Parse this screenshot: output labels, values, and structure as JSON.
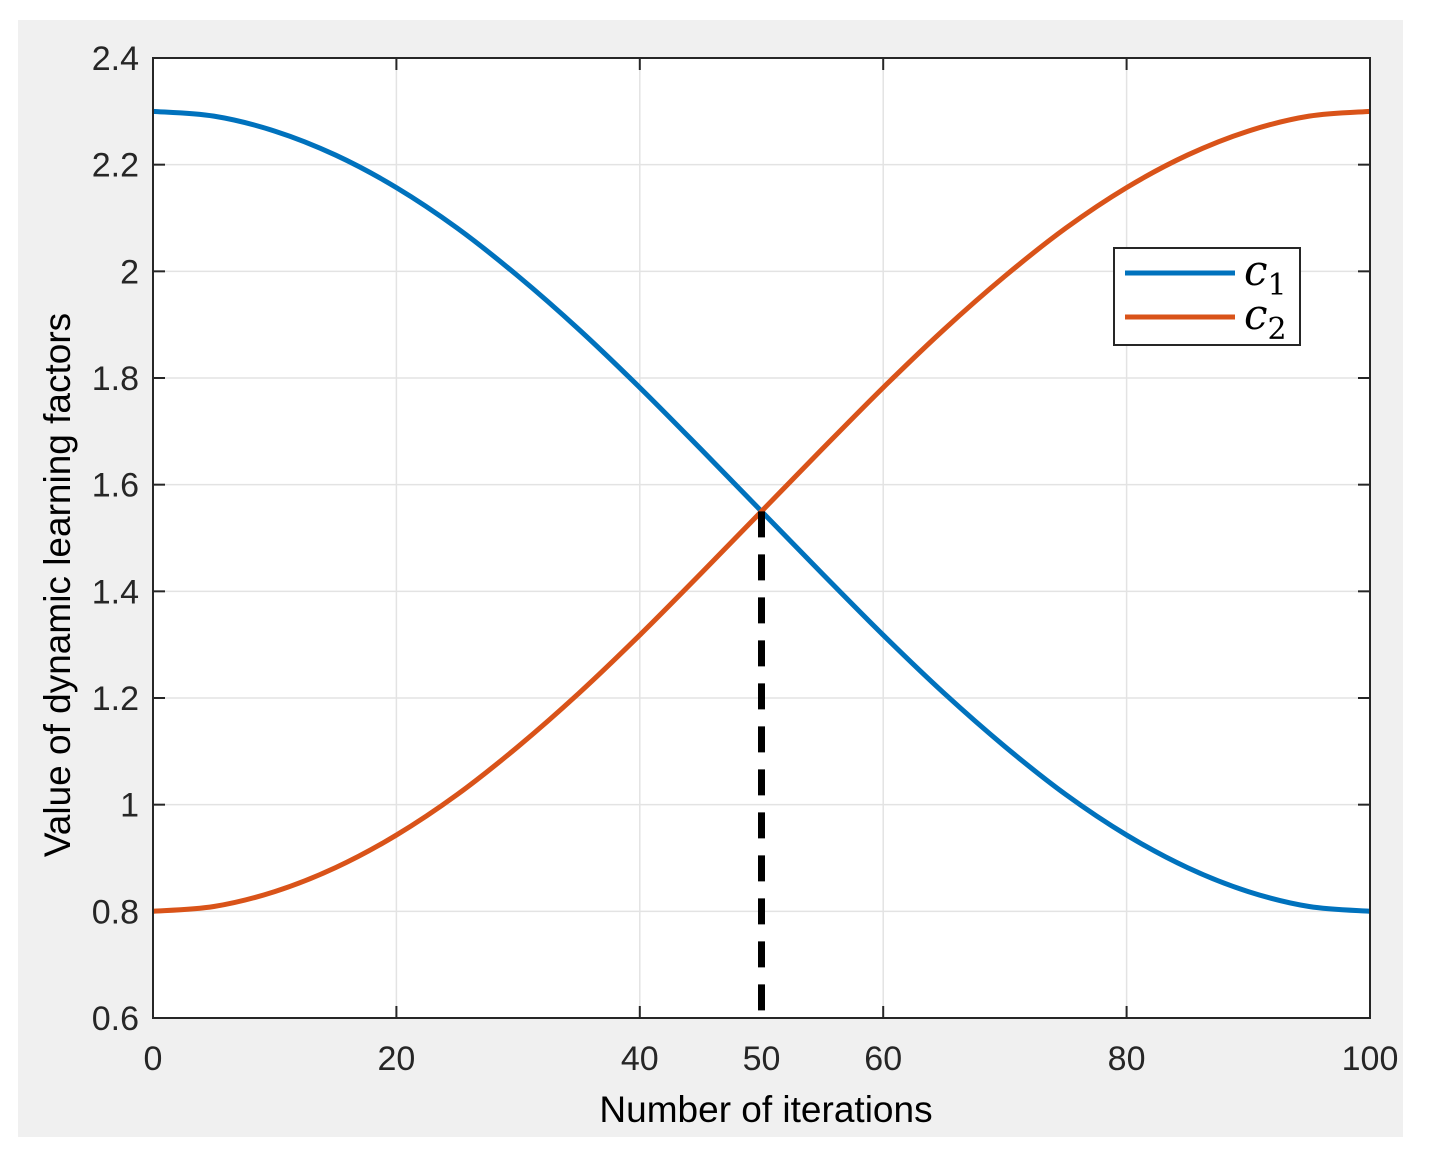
{
  "chart_data": {
    "type": "line",
    "title": "",
    "xlabel": "Number of iterations",
    "ylabel": "Value of dynamic learning factors",
    "xlim": [
      0,
      100
    ],
    "ylim": [
      0.6,
      2.4
    ],
    "xticks": [
      0,
      20,
      40,
      50,
      60,
      80,
      100
    ],
    "xtick_labels": [
      "0",
      "20",
      "40",
      "50",
      "60",
      "80",
      "100"
    ],
    "yticks": [
      0.6,
      0.8,
      1.0,
      1.2,
      1.4,
      1.6,
      1.8,
      2.0,
      2.2,
      2.4
    ],
    "ytick_labels": [
      "0.6",
      "0.8",
      "1",
      "1.2",
      "1.4",
      "1.6",
      "1.8",
      "2",
      "2.2",
      "2.4"
    ],
    "grid": true,
    "legend_position": "top-right",
    "x": [
      0,
      5,
      10,
      15,
      20,
      25,
      30,
      35,
      40,
      45,
      50,
      55,
      60,
      65,
      70,
      75,
      80,
      85,
      90,
      95,
      100
    ],
    "series": [
      {
        "name": "c",
        "subscript": "1",
        "color": "#0072bd",
        "values": [
          2.3,
          2.291,
          2.263,
          2.218,
          2.157,
          2.081,
          1.991,
          1.891,
          1.782,
          1.667,
          1.55,
          1.433,
          1.318,
          1.209,
          1.109,
          1.019,
          0.943,
          0.882,
          0.837,
          0.809,
          0.8
        ]
      },
      {
        "name": "c",
        "subscript": "2",
        "color": "#d95319",
        "values": [
          0.8,
          0.809,
          0.837,
          0.882,
          0.943,
          1.019,
          1.109,
          1.209,
          1.318,
          1.433,
          1.55,
          1.667,
          1.782,
          1.891,
          1.991,
          2.081,
          2.157,
          2.218,
          2.263,
          2.291,
          2.3
        ]
      }
    ],
    "annotations": [
      {
        "type": "vertical-dashed-line",
        "x": 50,
        "y_from": 0.6,
        "y_to": 1.55,
        "color": "#000000"
      }
    ]
  }
}
